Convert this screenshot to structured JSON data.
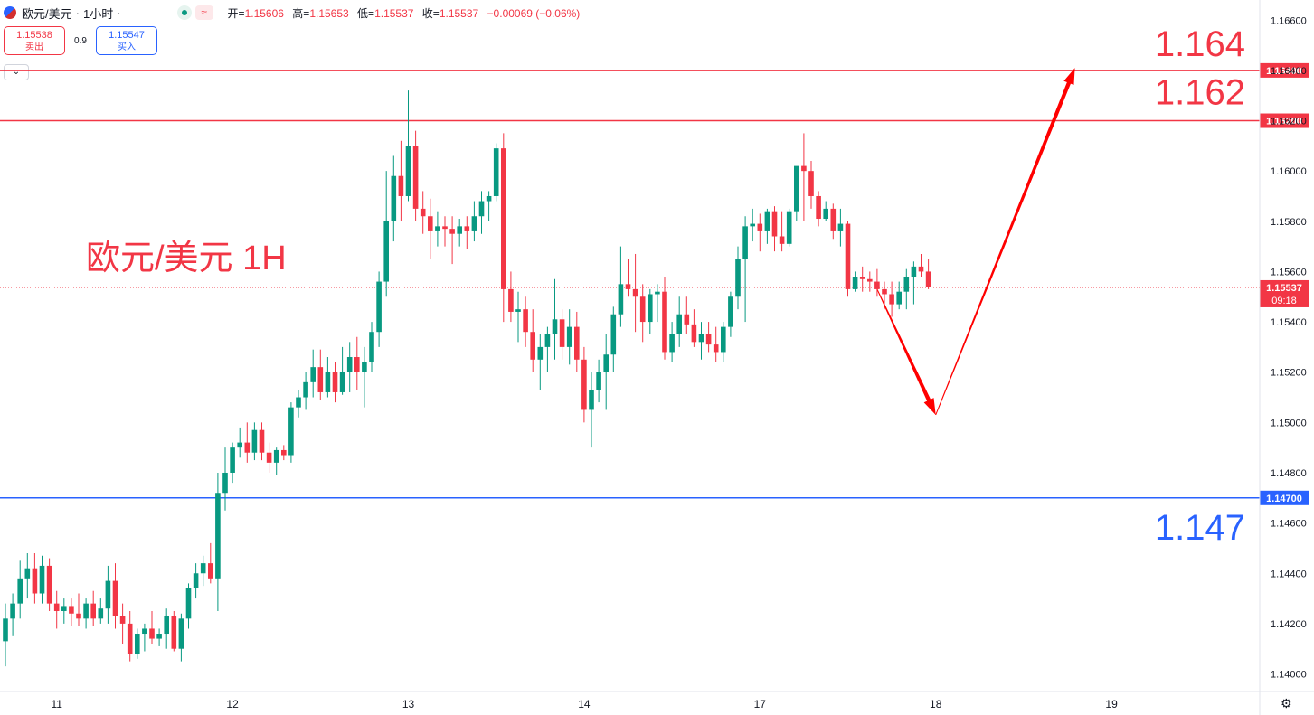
{
  "header": {
    "symbol": "欧元/美元",
    "interval": "1小时",
    "sep": "·",
    "open_label": "开=",
    "open": "1.15606",
    "high_label": "高=",
    "high": "1.15653",
    "low_label": "低=",
    "low": "1.15537",
    "close_label": "收=",
    "close": "1.15537",
    "change": "−0.00069 (−0.06%)",
    "wave_icon": "≈"
  },
  "trade": {
    "sell_price": "1.15538",
    "sell_label": "卖出",
    "spread": "0.9",
    "buy_price": "1.15547",
    "buy_label": "买入",
    "collapse_icon": "chevron-down-icon"
  },
  "colors": {
    "up": "#089981",
    "down": "#f23645",
    "accent_blue": "#2962ff",
    "arrow": "#ff0000"
  },
  "chart_data": {
    "type": "candlestick",
    "title": "欧元/美元 1H",
    "ylim": [
      1.1393,
      1.1668
    ],
    "yticks": [
      "1.16600",
      "1.16400",
      "1.16200",
      "1.16000",
      "1.15800",
      "1.15600",
      "1.15400",
      "1.15200",
      "1.15000",
      "1.14800",
      "1.14600",
      "1.14400",
      "1.14200",
      "1.14000"
    ],
    "xticks": [
      {
        "label": "11",
        "bar": 7
      },
      {
        "label": "12",
        "bar": 31
      },
      {
        "label": "13",
        "bar": 55
      },
      {
        "label": "14",
        "bar": 79
      },
      {
        "label": "17",
        "bar": 103
      },
      {
        "label": "18",
        "bar": 127
      },
      {
        "label": "19",
        "bar": 151
      }
    ],
    "total_bars": 177,
    "candles": [
      [
        1.1413,
        1.1428,
        1.1403,
        1.1422
      ],
      [
        1.1422,
        1.1432,
        1.1415,
        1.1428
      ],
      [
        1.1428,
        1.1445,
        1.1422,
        1.1438
      ],
      [
        1.1438,
        1.1448,
        1.143,
        1.1442
      ],
      [
        1.1442,
        1.1448,
        1.1428,
        1.1432
      ],
      [
        1.1432,
        1.1447,
        1.1428,
        1.1443
      ],
      [
        1.1443,
        1.1446,
        1.1425,
        1.1428
      ],
      [
        1.1428,
        1.1433,
        1.1418,
        1.1425
      ],
      [
        1.1425,
        1.143,
        1.142,
        1.1427
      ],
      [
        1.1427,
        1.143,
        1.1419,
        1.1424
      ],
      [
        1.1424,
        1.1432,
        1.1419,
        1.1422
      ],
      [
        1.1422,
        1.143,
        1.1418,
        1.1428
      ],
      [
        1.1428,
        1.1433,
        1.1419,
        1.1422
      ],
      [
        1.1422,
        1.143,
        1.142,
        1.1426
      ],
      [
        1.1426,
        1.1443,
        1.142,
        1.1437
      ],
      [
        1.1437,
        1.1444,
        1.1418,
        1.1423
      ],
      [
        1.1423,
        1.1428,
        1.1412,
        1.142
      ],
      [
        1.142,
        1.1425,
        1.1405,
        1.1408
      ],
      [
        1.1408,
        1.1418,
        1.1406,
        1.1416
      ],
      [
        1.1416,
        1.142,
        1.1409,
        1.1418
      ],
      [
        1.1418,
        1.1425,
        1.1412,
        1.1414
      ],
      [
        1.1414,
        1.1418,
        1.1411,
        1.1416
      ],
      [
        1.1416,
        1.1426,
        1.141,
        1.1423
      ],
      [
        1.1423,
        1.1425,
        1.1409,
        1.141
      ],
      [
        1.141,
        1.1424,
        1.1405,
        1.1422
      ],
      [
        1.1422,
        1.1436,
        1.1418,
        1.1434
      ],
      [
        1.1434,
        1.1444,
        1.143,
        1.144
      ],
      [
        1.144,
        1.1447,
        1.1435,
        1.1444
      ],
      [
        1.1444,
        1.1452,
        1.1436,
        1.1438
      ],
      [
        1.1438,
        1.148,
        1.1425,
        1.1472
      ],
      [
        1.1472,
        1.149,
        1.1465,
        1.148
      ],
      [
        1.148,
        1.1492,
        1.1476,
        1.149
      ],
      [
        1.149,
        1.1498,
        1.1486,
        1.1492
      ],
      [
        1.1492,
        1.15,
        1.1484,
        1.1488
      ],
      [
        1.1488,
        1.15,
        1.1485,
        1.1497
      ],
      [
        1.1497,
        1.15,
        1.1485,
        1.1488
      ],
      [
        1.1488,
        1.1492,
        1.148,
        1.1484
      ],
      [
        1.1484,
        1.149,
        1.1479,
        1.1489
      ],
      [
        1.1489,
        1.1491,
        1.1485,
        1.1487
      ],
      [
        1.1487,
        1.1508,
        1.1484,
        1.1506
      ],
      [
        1.1506,
        1.1513,
        1.1502,
        1.151
      ],
      [
        1.151,
        1.152,
        1.1505,
        1.1516
      ],
      [
        1.1516,
        1.1529,
        1.151,
        1.1522
      ],
      [
        1.1522,
        1.1529,
        1.1509,
        1.1512
      ],
      [
        1.1512,
        1.1526,
        1.151,
        1.152
      ],
      [
        1.152,
        1.1524,
        1.1508,
        1.1512
      ],
      [
        1.1512,
        1.153,
        1.1511,
        1.152
      ],
      [
        1.152,
        1.1532,
        1.1512,
        1.1526
      ],
      [
        1.1526,
        1.1534,
        1.1513,
        1.152
      ],
      [
        1.152,
        1.153,
        1.1506,
        1.1524
      ],
      [
        1.1524,
        1.154,
        1.152,
        1.1536
      ],
      [
        1.1536,
        1.156,
        1.153,
        1.1556
      ],
      [
        1.1556,
        1.16,
        1.155,
        1.158
      ],
      [
        1.158,
        1.1606,
        1.1572,
        1.1598
      ],
      [
        1.1598,
        1.1612,
        1.158,
        1.159
      ],
      [
        1.159,
        1.1632,
        1.1588,
        1.161
      ],
      [
        1.161,
        1.1616,
        1.158,
        1.1585
      ],
      [
        1.1585,
        1.1592,
        1.1575,
        1.1582
      ],
      [
        1.1582,
        1.1589,
        1.1565,
        1.1576
      ],
      [
        1.1576,
        1.1584,
        1.157,
        1.1578
      ],
      [
        1.1578,
        1.1582,
        1.157,
        1.1577
      ],
      [
        1.1577,
        1.1582,
        1.1563,
        1.1575
      ],
      [
        1.1575,
        1.1581,
        1.157,
        1.1578
      ],
      [
        1.1578,
        1.1582,
        1.1569,
        1.1576
      ],
      [
        1.1576,
        1.1588,
        1.1572,
        1.1582
      ],
      [
        1.1582,
        1.1592,
        1.1575,
        1.1588
      ],
      [
        1.1588,
        1.1592,
        1.158,
        1.159
      ],
      [
        1.159,
        1.1611,
        1.1588,
        1.1609
      ],
      [
        1.1609,
        1.1615,
        1.154,
        1.1553
      ],
      [
        1.1553,
        1.156,
        1.154,
        1.1544
      ],
      [
        1.1544,
        1.1552,
        1.1532,
        1.1545
      ],
      [
        1.1545,
        1.155,
        1.153,
        1.1536
      ],
      [
        1.1536,
        1.1545,
        1.152,
        1.1525
      ],
      [
        1.1525,
        1.1535,
        1.1513,
        1.153
      ],
      [
        1.153,
        1.1538,
        1.152,
        1.1535
      ],
      [
        1.1535,
        1.1557,
        1.1525,
        1.1541
      ],
      [
        1.1541,
        1.1545,
        1.1525,
        1.153
      ],
      [
        1.153,
        1.1545,
        1.1523,
        1.1538
      ],
      [
        1.1538,
        1.1544,
        1.152,
        1.1525
      ],
      [
        1.1525,
        1.153,
        1.15,
        1.1505
      ],
      [
        1.1505,
        1.152,
        1.149,
        1.1513
      ],
      [
        1.1513,
        1.1525,
        1.1508,
        1.152
      ],
      [
        1.152,
        1.1535,
        1.1505,
        1.1527
      ],
      [
        1.1527,
        1.1546,
        1.152,
        1.1543
      ],
      [
        1.1543,
        1.157,
        1.1538,
        1.1555
      ],
      [
        1.1555,
        1.1565,
        1.155,
        1.1553
      ],
      [
        1.1553,
        1.1567,
        1.1536,
        1.155
      ],
      [
        1.155,
        1.1555,
        1.1532,
        1.154
      ],
      [
        1.154,
        1.1553,
        1.1535,
        1.1551
      ],
      [
        1.1551,
        1.1555,
        1.154,
        1.1552
      ],
      [
        1.1552,
        1.1558,
        1.1525,
        1.1528
      ],
      [
        1.1528,
        1.154,
        1.1524,
        1.1535
      ],
      [
        1.1535,
        1.155,
        1.153,
        1.1543
      ],
      [
        1.1543,
        1.155,
        1.1535,
        1.1539
      ],
      [
        1.1539,
        1.1545,
        1.153,
        1.1532
      ],
      [
        1.1532,
        1.154,
        1.1525,
        1.1535
      ],
      [
        1.1535,
        1.154,
        1.1528,
        1.1531
      ],
      [
        1.1531,
        1.1538,
        1.1524,
        1.1528
      ],
      [
        1.1528,
        1.154,
        1.1524,
        1.1538
      ],
      [
        1.1538,
        1.1552,
        1.1534,
        1.155
      ],
      [
        1.155,
        1.157,
        1.1545,
        1.1565
      ],
      [
        1.1565,
        1.1582,
        1.154,
        1.1578
      ],
      [
        1.1578,
        1.1585,
        1.1572,
        1.1579
      ],
      [
        1.1579,
        1.1583,
        1.1568,
        1.1576
      ],
      [
        1.1576,
        1.1585,
        1.1571,
        1.1584
      ],
      [
        1.1584,
        1.1586,
        1.1568,
        1.1574
      ],
      [
        1.1574,
        1.1584,
        1.1568,
        1.1571
      ],
      [
        1.1571,
        1.1585,
        1.157,
        1.1584
      ],
      [
        1.1584,
        1.16,
        1.158,
        1.1602
      ],
      [
        1.1602,
        1.1615,
        1.158,
        1.16
      ],
      [
        1.16,
        1.1604,
        1.1585,
        1.159
      ],
      [
        1.159,
        1.1592,
        1.1578,
        1.1581
      ],
      [
        1.1581,
        1.1588,
        1.158,
        1.1585
      ],
      [
        1.1585,
        1.1587,
        1.1573,
        1.1576
      ],
      [
        1.1576,
        1.1585,
        1.157,
        1.1579
      ],
      [
        1.1579,
        1.158,
        1.155,
        1.1553
      ],
      [
        1.1553,
        1.156,
        1.1552,
        1.1558
      ],
      [
        1.1558,
        1.1562,
        1.1552,
        1.1557
      ],
      [
        1.1557,
        1.156,
        1.1552,
        1.1556
      ],
      [
        1.1556,
        1.1561,
        1.155,
        1.1553
      ],
      [
        1.1553,
        1.1556,
        1.1545,
        1.1551
      ],
      [
        1.1551,
        1.1556,
        1.1542,
        1.1547
      ],
      [
        1.1547,
        1.1556,
        1.1545,
        1.1552
      ],
      [
        1.1552,
        1.1561,
        1.1545,
        1.1558
      ],
      [
        1.1558,
        1.1564,
        1.1547,
        1.1562
      ],
      [
        1.1562,
        1.1567,
        1.1558,
        1.156
      ],
      [
        1.156,
        1.1565,
        1.1553,
        1.1554
      ]
    ],
    "price_lines": [
      {
        "value": 1.164,
        "tag": "1.16400",
        "label": "1.164",
        "color": "#f23645"
      },
      {
        "value": 1.162,
        "tag": "1.16200",
        "label": "1.162",
        "color": "#f23645"
      },
      {
        "value": 1.147,
        "tag": "1.14700",
        "label": "1.147",
        "color": "#2962ff"
      }
    ],
    "current_price": {
      "value": 1.15537,
      "tag": "1.15537",
      "countdown": "09:18"
    },
    "forecast_path": [
      {
        "bar": 119,
        "price": 1.1553
      },
      {
        "bar": 127,
        "price": 1.1503
      },
      {
        "bar": 146,
        "price": 1.1641
      }
    ]
  }
}
